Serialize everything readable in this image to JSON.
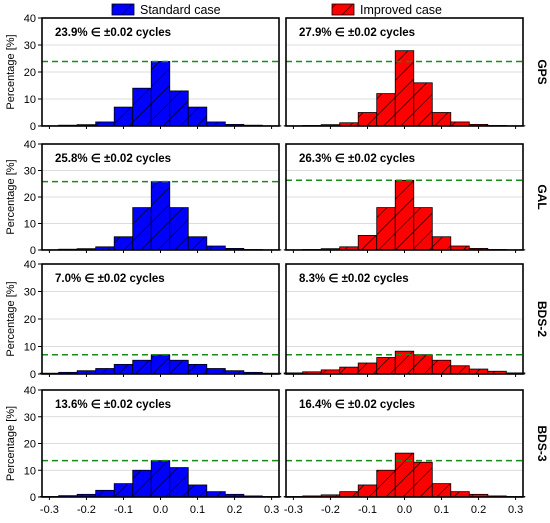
{
  "figure": {
    "legend": [
      {
        "name": "Standard case",
        "color": "#0000ff"
      },
      {
        "name": "Improved case",
        "color": "#ff0000"
      }
    ],
    "ylabel": "Percentage  [%]",
    "ylabel_short": "Percentage [%]"
  },
  "chart_data": {
    "type": "bar",
    "bin_centers": [
      -0.3,
      -0.25,
      -0.2,
      -0.15,
      -0.1,
      -0.05,
      0.0,
      0.05,
      0.1,
      0.15,
      0.2,
      0.25,
      0.3
    ],
    "bin_width": 0.05,
    "xlim": [
      -0.32,
      0.32
    ],
    "ylim": [
      0,
      40
    ],
    "xticks": [
      "-0.3",
      "-0.2",
      "-0.1",
      "0.0",
      "0.1",
      "0.2",
      "0.3"
    ],
    "xtick_values": [
      -0.3,
      -0.2,
      -0.1,
      0.0,
      0.1,
      0.2,
      0.3
    ],
    "yticks": [
      "0",
      "10",
      "20",
      "30",
      "40"
    ],
    "ytick_values": [
      0,
      10,
      20,
      30,
      40
    ],
    "grid": "horizontal",
    "reference_line_style": "green dashed",
    "legend_position": "top",
    "series": [
      {
        "name": "Standard case",
        "color": "#0000ff"
      },
      {
        "name": "Improved case",
        "color": "#ff0000"
      }
    ],
    "rows": [
      {
        "label": "GPS",
        "panels": [
          {
            "series": "Standard case",
            "annotation": "23.9% ∈ ±0.02 cycles",
            "reference_line": 23.9,
            "values": [
              0.1,
              0.3,
              0.5,
              1.5,
              7,
              14,
              23.9,
              13,
              7,
              1.5,
              0.6,
              0.3,
              0.1
            ]
          },
          {
            "series": "Improved case",
            "annotation": "27.9% ∈ ±0.02 cycles",
            "reference_line": 23.9,
            "values": [
              0.1,
              0.2,
              0.5,
              1.2,
              5,
              12,
              27.9,
              16,
              5,
              1.5,
              0.6,
              0.2,
              0.1
            ]
          }
        ]
      },
      {
        "label": "GAL",
        "panels": [
          {
            "series": "Standard case",
            "annotation": "25.8% ∈ ±0.02 cycles",
            "reference_line": 25.8,
            "values": [
              0.1,
              0.3,
              0.5,
              1.2,
              5,
              16,
              25.8,
              16,
              5,
              1.5,
              0.6,
              0.2,
              0.1
            ]
          },
          {
            "series": "Improved case",
            "annotation": "26.3% ∈ ±0.02 cycles",
            "reference_line": 26.3,
            "values": [
              0.1,
              0.2,
              0.5,
              1.2,
              5.5,
              16,
              26.3,
              16,
              5,
              1.5,
              0.6,
              0.2,
              0.1
            ]
          }
        ]
      },
      {
        "label": "BDS-2",
        "panels": [
          {
            "series": "Standard case",
            "annotation": "7.0% ∈ ±0.02 cycles",
            "reference_line": 7.0,
            "values": [
              0.3,
              0.6,
              1.2,
              2,
              3.5,
              5,
              7.0,
              5,
              3.5,
              2,
              1.2,
              0.6,
              0.3
            ]
          },
          {
            "series": "Improved case",
            "annotation": "8.3% ∈ ±0.02 cycles",
            "reference_line": 7.0,
            "values": [
              0.4,
              0.8,
              1.5,
              2.5,
              4,
              6,
              8.3,
              7,
              5,
              3,
              1.8,
              1,
              0.4
            ]
          }
        ]
      },
      {
        "label": "BDS-3",
        "panels": [
          {
            "series": "Standard case",
            "annotation": "13.6% ∈ ±0.02 cycles",
            "reference_line": 13.6,
            "values": [
              0.2,
              0.5,
              1,
              2.5,
              5,
              10,
              13.6,
              11,
              4.5,
              2,
              1,
              0.4,
              0.2
            ]
          },
          {
            "series": "Improved case",
            "annotation": "16.4% ∈ ±0.02 cycles",
            "reference_line": 13.6,
            "values": [
              0.2,
              0.4,
              0.8,
              2,
              4.5,
              10,
              16.4,
              13,
              5,
              2,
              1,
              0.4,
              0.2
            ]
          }
        ]
      }
    ]
  }
}
